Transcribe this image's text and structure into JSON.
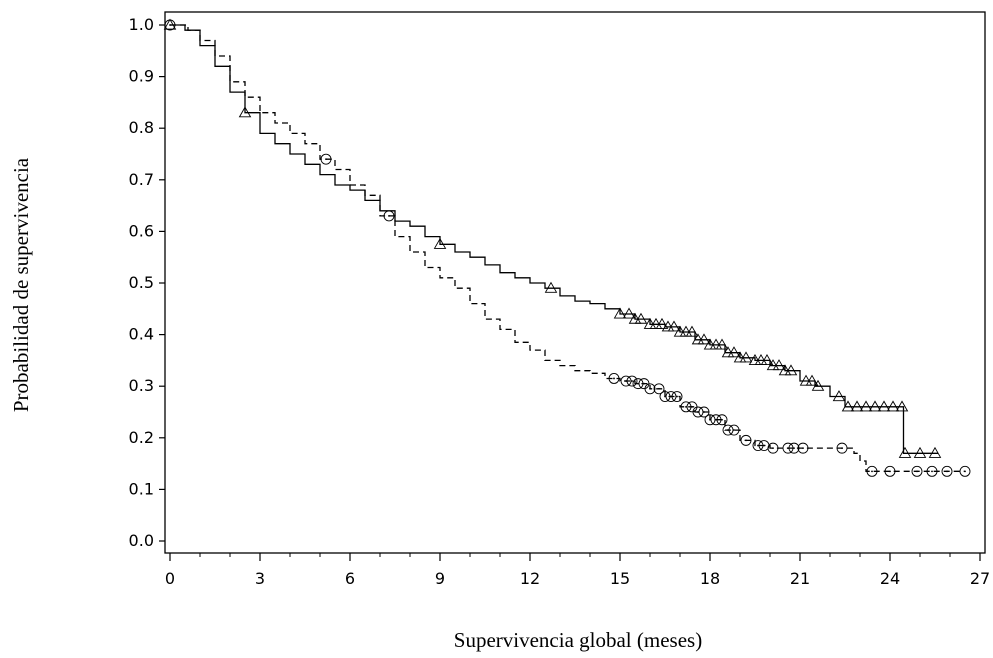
{
  "chart_data": {
    "type": "line",
    "title": "",
    "xlabel": "Supervivencia global (meses)",
    "ylabel": "Probabilidad de supervivencia",
    "xlim": [
      0,
      27
    ],
    "ylim": [
      0,
      1.0
    ],
    "x_ticks": [
      0,
      3,
      6,
      9,
      12,
      15,
      18,
      21,
      24,
      27
    ],
    "y_ticks": [
      "0.0",
      "0.1",
      "0.2",
      "0.3",
      "0.4",
      "0.5",
      "0.6",
      "0.7",
      "0.8",
      "0.9",
      "1.0"
    ],
    "grid": false,
    "legend": "none",
    "series": [
      {
        "style": "solid",
        "marker": "triangle",
        "points": [
          [
            0,
            1.0
          ],
          [
            0.5,
            0.99
          ],
          [
            1.0,
            0.96
          ],
          [
            1.5,
            0.92
          ],
          [
            2.0,
            0.87
          ],
          [
            2.5,
            0.83
          ],
          [
            3.0,
            0.79
          ],
          [
            3.5,
            0.77
          ],
          [
            4.0,
            0.75
          ],
          [
            4.5,
            0.73
          ],
          [
            5.0,
            0.71
          ],
          [
            5.5,
            0.69
          ],
          [
            6.0,
            0.68
          ],
          [
            6.5,
            0.66
          ],
          [
            7.0,
            0.64
          ],
          [
            7.5,
            0.62
          ],
          [
            8.0,
            0.61
          ],
          [
            8.5,
            0.59
          ],
          [
            9.0,
            0.575
          ],
          [
            9.5,
            0.56
          ],
          [
            10.0,
            0.55
          ],
          [
            10.5,
            0.535
          ],
          [
            11.0,
            0.52
          ],
          [
            11.5,
            0.51
          ],
          [
            12.0,
            0.5
          ],
          [
            12.5,
            0.49
          ],
          [
            13.0,
            0.475
          ],
          [
            13.5,
            0.465
          ],
          [
            14.0,
            0.46
          ],
          [
            14.5,
            0.45
          ],
          [
            15.0,
            0.44
          ],
          [
            15.5,
            0.43
          ],
          [
            16.0,
            0.42
          ],
          [
            16.5,
            0.415
          ],
          [
            17.0,
            0.405
          ],
          [
            17.5,
            0.39
          ],
          [
            18.0,
            0.38
          ],
          [
            18.5,
            0.365
          ],
          [
            19.0,
            0.355
          ],
          [
            19.5,
            0.35
          ],
          [
            20.0,
            0.34
          ],
          [
            20.5,
            0.33
          ],
          [
            21.0,
            0.31
          ],
          [
            21.5,
            0.3
          ],
          [
            22.0,
            0.28
          ],
          [
            22.5,
            0.26
          ],
          [
            24.45,
            0.26
          ],
          [
            24.45,
            0.17
          ],
          [
            25.6,
            0.17
          ]
        ],
        "censor_marks_x": [
          0,
          2.5,
          9.0,
          12.7,
          15.0,
          15.3,
          15.5,
          15.7,
          16.0,
          16.2,
          16.4,
          16.6,
          16.8,
          17.0,
          17.2,
          17.4,
          17.6,
          17.8,
          18.0,
          18.2,
          18.4,
          18.6,
          18.8,
          19.0,
          19.2,
          19.5,
          19.7,
          19.9,
          20.1,
          20.3,
          20.5,
          20.7,
          21.2,
          21.4,
          21.6,
          22.3,
          22.6,
          22.9,
          23.2,
          23.5,
          23.8,
          24.1,
          24.4,
          24.5,
          25.0,
          25.5
        ]
      },
      {
        "style": "dashed",
        "marker": "circle",
        "points": [
          [
            0,
            1.0
          ],
          [
            0.6,
            0.99
          ],
          [
            1.0,
            0.97
          ],
          [
            1.5,
            0.94
          ],
          [
            2.0,
            0.89
          ],
          [
            2.5,
            0.86
          ],
          [
            3.0,
            0.83
          ],
          [
            3.5,
            0.81
          ],
          [
            4.0,
            0.79
          ],
          [
            4.5,
            0.77
          ],
          [
            5.0,
            0.74
          ],
          [
            5.5,
            0.72
          ],
          [
            6.0,
            0.69
          ],
          [
            6.5,
            0.67
          ],
          [
            7.0,
            0.63
          ],
          [
            7.5,
            0.59
          ],
          [
            8.0,
            0.56
          ],
          [
            8.5,
            0.53
          ],
          [
            9.0,
            0.51
          ],
          [
            9.5,
            0.49
          ],
          [
            10.0,
            0.46
          ],
          [
            10.5,
            0.43
          ],
          [
            11.0,
            0.41
          ],
          [
            11.5,
            0.385
          ],
          [
            12.0,
            0.37
          ],
          [
            12.5,
            0.35
          ],
          [
            13.0,
            0.34
          ],
          [
            13.5,
            0.33
          ],
          [
            14.0,
            0.325
          ],
          [
            14.5,
            0.315
          ],
          [
            15.0,
            0.31
          ],
          [
            15.5,
            0.305
          ],
          [
            16.0,
            0.295
          ],
          [
            16.5,
            0.28
          ],
          [
            17.0,
            0.26
          ],
          [
            17.5,
            0.25
          ],
          [
            18.0,
            0.235
          ],
          [
            18.5,
            0.215
          ],
          [
            19.0,
            0.195
          ],
          [
            19.5,
            0.185
          ],
          [
            20.0,
            0.18
          ],
          [
            22.5,
            0.18
          ],
          [
            22.8,
            0.17
          ],
          [
            23.0,
            0.155
          ],
          [
            23.2,
            0.135
          ],
          [
            26.5,
            0.135
          ]
        ],
        "censor_marks_x": [
          0,
          5.2,
          7.3,
          14.8,
          15.2,
          15.4,
          15.6,
          15.8,
          16.0,
          16.3,
          16.5,
          16.7,
          16.9,
          17.2,
          17.4,
          17.6,
          17.8,
          18.0,
          18.2,
          18.4,
          18.6,
          18.8,
          19.2,
          19.6,
          19.8,
          20.1,
          20.6,
          20.8,
          21.1,
          22.4,
          23.4,
          24.0,
          24.9,
          25.4,
          25.9,
          26.5
        ]
      }
    ]
  }
}
